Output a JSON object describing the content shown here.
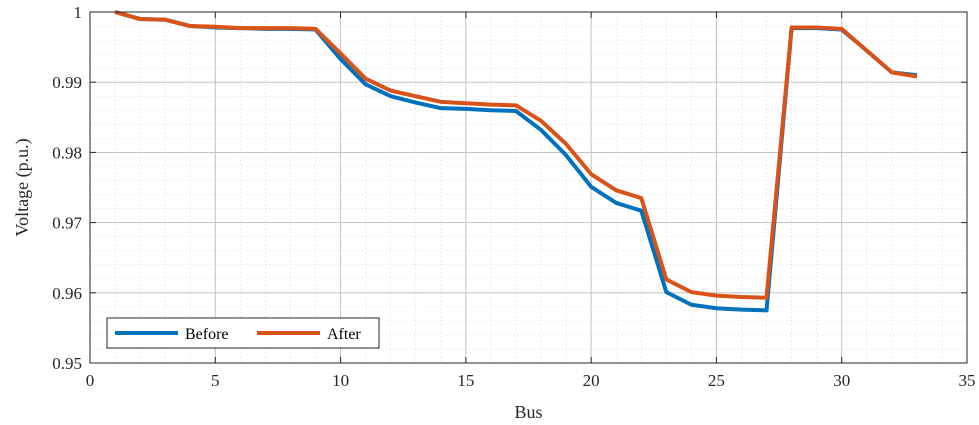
{
  "chart_data": {
    "type": "line",
    "title": "",
    "xlabel": "Bus",
    "ylabel": "Voltage (p.u.)",
    "xlim": [
      0,
      35
    ],
    "ylim": [
      0.95,
      1
    ],
    "xticks": [
      0,
      5,
      10,
      15,
      20,
      25,
      30,
      35
    ],
    "yticks": [
      0.95,
      0.96,
      0.97,
      0.98,
      0.99,
      1
    ],
    "xtick_labels": [
      "0",
      "5",
      "10",
      "15",
      "20",
      "25",
      "30",
      "35"
    ],
    "ytick_labels": [
      "0.95",
      "0.96",
      "0.97",
      "0.98",
      "0.99",
      "1"
    ],
    "grid": true,
    "minor_grid": true,
    "legend_position": "bottom-left",
    "x": [
      1,
      2,
      3,
      4,
      5,
      6,
      7,
      8,
      9,
      10,
      11,
      12,
      13,
      14,
      15,
      16,
      17,
      18,
      19,
      20,
      21,
      22,
      23,
      24,
      25,
      26,
      27,
      28,
      29,
      30,
      31,
      32,
      33
    ],
    "series": [
      {
        "name": "Before",
        "color": "#0072BD",
        "values": [
          1.0,
          0.999,
          0.9989,
          0.998,
          0.9978,
          0.9977,
          0.9976,
          0.9976,
          0.9975,
          0.9933,
          0.9897,
          0.988,
          0.9871,
          0.9863,
          0.9862,
          0.986,
          0.9859,
          0.9832,
          0.9796,
          0.9751,
          0.9728,
          0.9717,
          0.9601,
          0.9583,
          0.9578,
          0.9576,
          0.9575,
          0.9977,
          0.9977,
          0.9975,
          0.9945,
          0.9914,
          0.991
        ]
      },
      {
        "name": "After",
        "color": "#D95319",
        "values": [
          1.0,
          0.999,
          0.9989,
          0.998,
          0.9979,
          0.9977,
          0.9977,
          0.9977,
          0.9976,
          0.9941,
          0.9905,
          0.9888,
          0.988,
          0.9872,
          0.987,
          0.9868,
          0.9867,
          0.9845,
          0.9812,
          0.9769,
          0.9746,
          0.9735,
          0.9619,
          0.9601,
          0.9596,
          0.9594,
          0.9593,
          0.9978,
          0.9978,
          0.9976,
          0.9945,
          0.9914,
          0.9908
        ]
      }
    ]
  }
}
